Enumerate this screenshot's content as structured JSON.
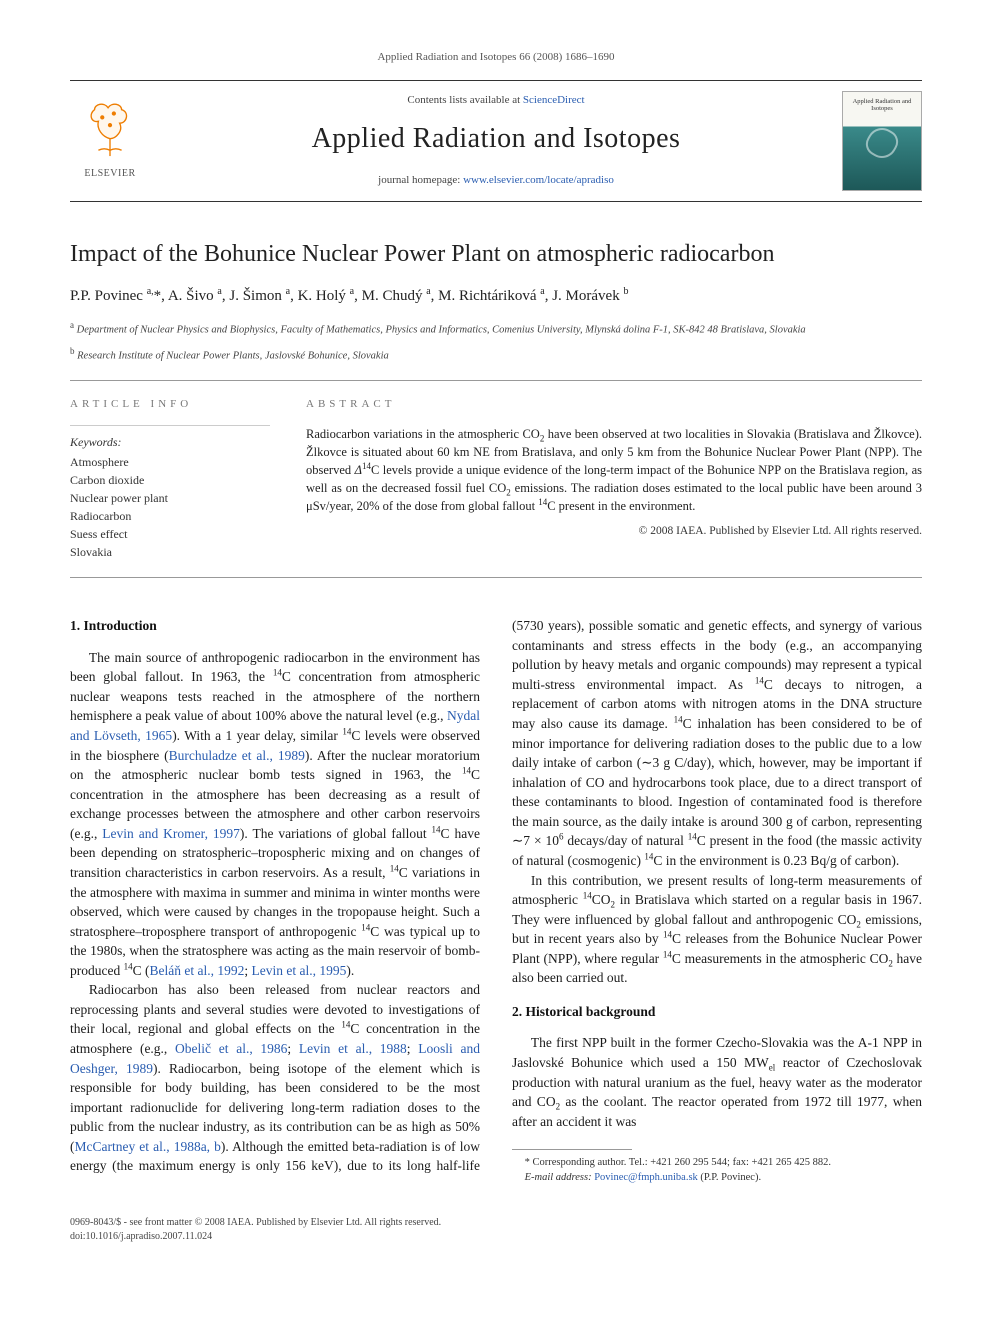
{
  "citation": "Applied Radiation and Isotopes 66 (2008) 1686–1690",
  "masthead": {
    "contents_prefix": "Contents lists available at ",
    "contents_link": "ScienceDirect",
    "journal_title": "Applied Radiation and Isotopes",
    "homepage_prefix": "journal homepage: ",
    "homepage_link": "www.elsevier.com/locate/apradiso",
    "publisher_label": "ELSEVIER",
    "cover_title": "Applied Radiation and Isotopes"
  },
  "article": {
    "title": "Impact of the Bohunice Nuclear Power Plant on atmospheric radiocarbon",
    "authors_html": "P.P. Povinec <sup>a,</sup>*, A. Šivo <sup>a</sup>, J. Šimon <sup>a</sup>, K. Holý <sup>a</sup>, M. Chudý <sup>a</sup>, M. Richtáriková <sup>a</sup>, J. Morávek <sup>b</sup>",
    "affiliations": [
      "<sup>a</sup> Department of Nuclear Physics and Biophysics, Faculty of Mathematics, Physics and Informatics, Comenius University, Mlynská dolina F-1, SK-842 48 Bratislava, Slovakia",
      "<sup>b</sup> Research Institute of Nuclear Power Plants, Jaslovské Bohunice, Slovakia"
    ]
  },
  "info": {
    "heading": "ARTICLE INFO",
    "keywords_label": "Keywords:",
    "keywords": [
      "Atmosphere",
      "Carbon dioxide",
      "Nuclear power plant",
      "Radiocarbon",
      "Suess effect",
      "Slovakia"
    ]
  },
  "abstract": {
    "heading": "ABSTRACT",
    "text_html": "Radiocarbon variations in the atmospheric CO<sub>2</sub> have been observed at two localities in Slovakia (Bratislava and Žlkovce). Žlkovce is situated about 60 km NE from Bratislava, and only 5 km from the Bohunice Nuclear Power Plant (NPP). The observed <i>Δ</i><sup>14</sup>C levels provide a unique evidence of the long-term impact of the Bohunice NPP on the Bratislava region, as well as on the decreased fossil fuel CO<sub>2</sub> emissions. The radiation doses estimated to the local public have been around 3 μSv/year, 20% of the dose from global fallout <sup>14</sup>C present in the environment.",
    "copyright": "© 2008 IAEA. Published by Elsevier Ltd. All rights reserved."
  },
  "sections": {
    "s1": {
      "heading": "1.  Introduction",
      "p1_html": "The main source of anthropogenic radiocarbon in the environment has been global fallout. In 1963, the <sup>14</sup>C concentration from atmospheric nuclear weapons tests reached in the atmosphere of the northern hemisphere a peak value of about 100% above the natural level (e.g., <a>Nydal and Lövseth, 1965</a>). With a 1 year delay, similar <sup>14</sup>C levels were observed in the biosphere (<a>Burchuladze et al., 1989</a>). After the nuclear moratorium on the atmospheric nuclear bomb tests signed in 1963, the <sup>14</sup>C concentration in the atmosphere has been decreasing as a result of exchange processes between the atmosphere and other carbon reservoirs (e.g., <a>Levin and Kromer, 1997</a>). The variations of global fallout <sup>14</sup>C have been depending on stratospheric–tropospheric mixing and on changes of transition characteristics in carbon reservoirs. As a result, <sup>14</sup>C variations in the atmosphere with maxima in summer and minima in winter months were observed, which were caused by changes in the tropopause height. Such a stratosphere–troposphere transport of anthropogenic <sup>14</sup>C was typical up to the 1980s, when the stratosphere was acting as the main reservoir of bomb-produced <sup>14</sup>C (<a>Beláň et al., 1992</a>; <a>Levin et al., 1995</a>).",
      "p2_html": "Radiocarbon has also been released from nuclear reactors and reprocessing plants and several studies were devoted to investigations of their local, regional and global effects on the <sup>14</sup>C concentration in the atmosphere (e.g., <a>Obelič et al., 1986</a>; <a>Levin et al., 1988</a>; <a>Loosli and Oeshger, 1989</a>). Radiocarbon, being isotope of the element which is responsible for body building, has been considered to be the most important radionuclide for delivering long-term radiation doses to the public from the nuclear industry, as its contribution can be as high as 50% (<a>McCartney et al., 1988a, b</a>). Although the emitted beta-radiation is of low energy (the maximum energy is only 156 keV), due to its long half-life (5730 years), possible somatic and genetic effects, and synergy of various contaminants and stress effects in the body (e.g., an accompanying pollution by heavy metals and organic compounds) may represent a typical multi-stress environmental impact. As <sup>14</sup>C decays to nitrogen, a replacement of carbon atoms with nitrogen atoms in the DNA structure may also cause its damage. <sup>14</sup>C inhalation has been considered to be of minor importance for delivering radiation doses to the public due to a low daily intake of carbon (∼3 g C/day), which, however, may be important if inhalation of CO and hydrocarbons took place, due to a direct transport of these contaminants to blood. Ingestion of contaminated food is therefore the main source, as the daily intake is around 300 g of carbon, representing ∼7 × 10<sup>6</sup> decays/day of natural <sup>14</sup>C present in the food (the massic activity of natural (cosmogenic) <sup>14</sup>C in the environment is 0.23 Bq/g of carbon).",
      "p3_html": "In this contribution, we present results of long-term measurements of atmospheric <sup>14</sup>CO<sub>2</sub> in Bratislava which started on a regular basis in 1967. They were influenced by global fallout and anthropogenic CO<sub>2</sub> emissions, but in recent years also by <sup>14</sup>C releases from the Bohunice Nuclear Power Plant (NPP), where regular <sup>14</sup>C measurements in the atmospheric CO<sub>2</sub> have also been carried out."
    },
    "s2": {
      "heading": "2.  Historical background",
      "p1_html": "The first NPP built in the former Czecho-Slovakia was the A-1 NPP in Jaslovské Bohunice which used a 150 MW<sub>el</sub> reactor of Czechoslovak production with natural uranium as the fuel, heavy water as the moderator and CO<sub>2</sub> as the coolant. The reactor operated from 1972 till 1977, when after an accident it was"
    }
  },
  "footnote": {
    "line1": "* Corresponding author. Tel.: +421 260 295 544; fax: +421 265 425 882.",
    "line2_prefix": "E-mail address: ",
    "email": "Povinec@fmph.uniba.sk",
    "line2_suffix": " (P.P. Povinec)."
  },
  "footer": {
    "line1": "0969-8043/$ - see front matter © 2008 IAEA. Published by Elsevier Ltd. All rights reserved.",
    "line2": "doi:10.1016/j.apradiso.2007.11.024"
  },
  "colors": {
    "link": "#2a5db0",
    "rule": "#999999",
    "elsevier_orange": "#ee7d00"
  }
}
